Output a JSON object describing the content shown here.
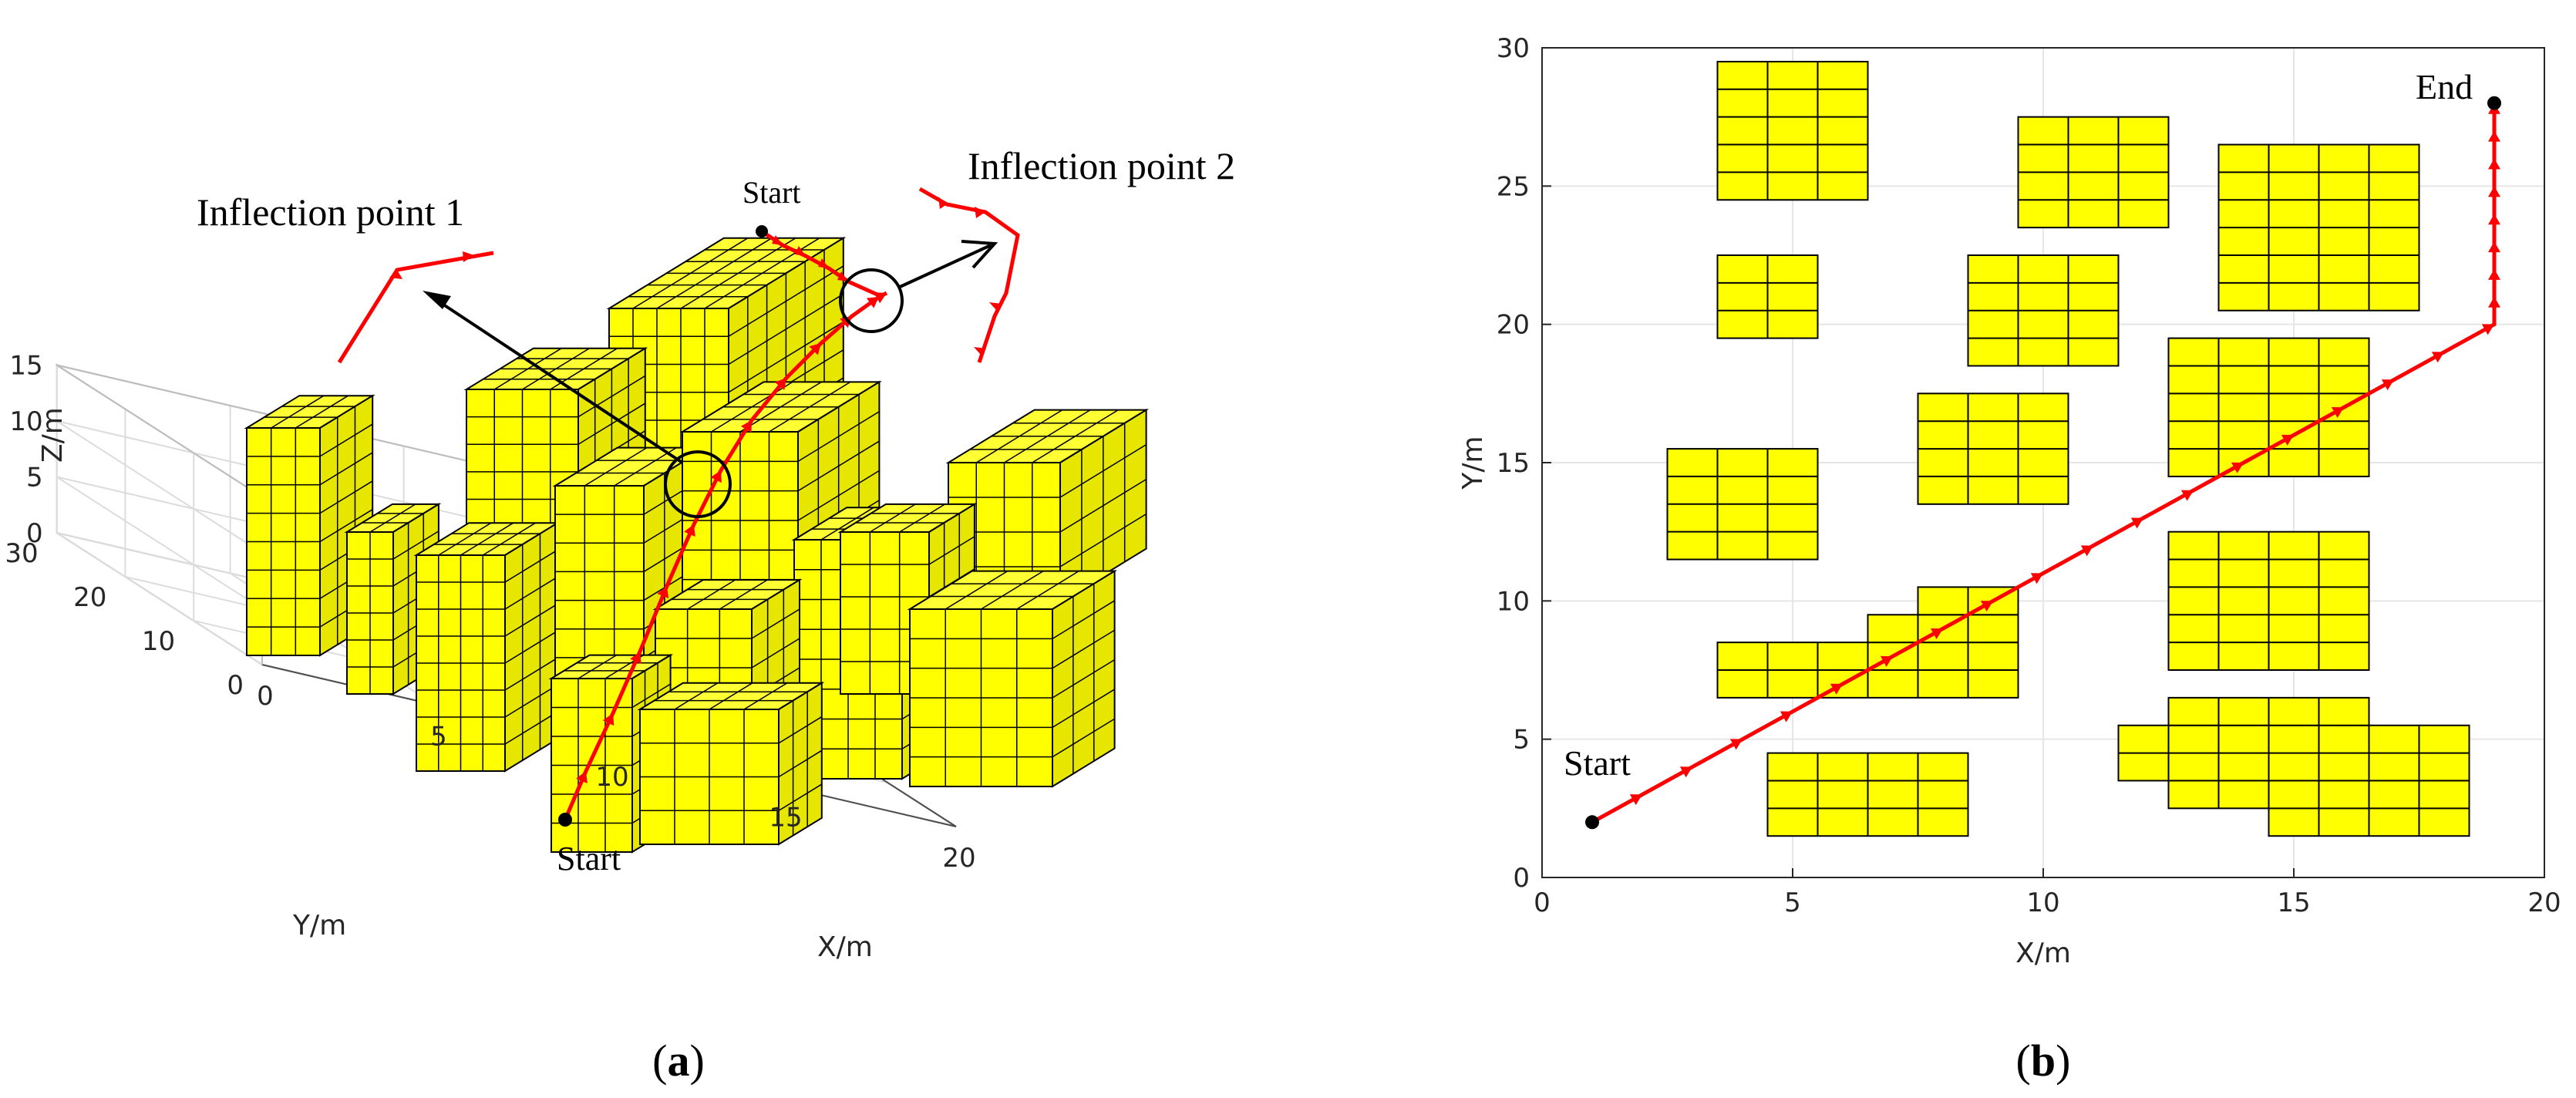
{
  "panels": {
    "a": {
      "caption_open": "(",
      "caption_letter": "a",
      "caption_close": ")"
    },
    "b": {
      "caption_open": "(",
      "caption_letter": "b",
      "caption_close": ")"
    }
  },
  "chart_data": [
    {
      "type": "scatter",
      "variant": "3d",
      "title": "",
      "xlabel": "X/m",
      "ylabel": "Y/m",
      "zlabel": "Z/m",
      "xlim": [
        0,
        20
      ],
      "ylim": [
        0,
        30
      ],
      "zlim": [
        0,
        15
      ],
      "xticks": [
        "0",
        "5",
        "10",
        "15",
        "20"
      ],
      "yticks": [
        "0",
        "10",
        "20",
        "30"
      ],
      "zticks": [
        "0",
        "5",
        "10",
        "15"
      ],
      "grid": true,
      "obstacle_color": "#ffff00",
      "path_color": "#ff0000",
      "annotations": {
        "start_bottom": "Start",
        "start_top": "Start",
        "inflection_1": "Inflection point 1",
        "inflection_2": "Inflection point 2"
      },
      "series": [
        {
          "values_3d": [
            [
              1,
              2,
              0
            ],
            [
              2.4,
              3,
              1.2
            ],
            [
              3.8,
              4,
              2.4
            ],
            [
              5.2,
              5,
              3.6
            ],
            [
              6.6,
              6,
              4.8
            ],
            [
              8,
              7,
              6
            ],
            [
              9.6,
              8.4,
              6.9
            ],
            [
              11.2,
              9.8,
              7.8
            ],
            [
              12.8,
              11.2,
              8.7
            ],
            [
              14.4,
              12.6,
              9.6
            ],
            [
              16,
              14,
              10.5
            ],
            [
              17.5,
              15.5,
              11.2
            ],
            [
              19,
              17,
              12
            ]
          ]
        }
      ]
    },
    {
      "type": "line",
      "title": "",
      "xlabel": "X/m",
      "ylabel": "Y/m",
      "xlim": [
        0,
        20
      ],
      "ylim": [
        0,
        30
      ],
      "xticks": [
        "0",
        "5",
        "10",
        "15",
        "20"
      ],
      "yticks": [
        "0",
        "5",
        "10",
        "15",
        "20",
        "25",
        "30"
      ],
      "grid": true,
      "obstacle_color": "#ffff00",
      "path_color": "#ff0000",
      "annotations": {
        "start": "Start",
        "end": "End"
      },
      "series": [
        {
          "x": [
            1,
            2,
            3,
            4,
            5,
            6,
            7,
            8,
            9,
            10,
            11,
            12,
            13,
            14,
            15,
            16,
            17,
            18,
            19,
            19,
            19,
            19,
            19,
            19,
            19,
            19,
            19
          ],
          "y": [
            2,
            3,
            4,
            5,
            6,
            7,
            8,
            9,
            10,
            11,
            12,
            13,
            14,
            15,
            16,
            17,
            18,
            19,
            20,
            21,
            22,
            23,
            24,
            25,
            26,
            27,
            28
          ]
        }
      ],
      "obstacles": [
        {
          "x": [
            3.5,
            6.5
          ],
          "y": [
            24.5,
            29.5
          ]
        },
        {
          "x": [
            9.5,
            12.5
          ],
          "y": [
            23.5,
            27.5
          ]
        },
        {
          "x": [
            13.5,
            17.5
          ],
          "y": [
            20.5,
            26.5
          ]
        },
        {
          "x": [
            3.5,
            5.5
          ],
          "y": [
            19.5,
            22.5
          ]
        },
        {
          "x": [
            8.5,
            11.5
          ],
          "y": [
            18.5,
            22.5
          ]
        },
        {
          "x": [
            12.5,
            16.5
          ],
          "y": [
            14.5,
            19.5
          ]
        },
        {
          "x": [
            7.5,
            10.5
          ],
          "y": [
            13.5,
            17.5
          ]
        },
        {
          "x": [
            2.5,
            5.5
          ],
          "y": [
            11.5,
            15.5
          ]
        },
        {
          "x": [
            12.5,
            16.5
          ],
          "y": [
            7.5,
            12.5
          ]
        },
        {
          "x": [
            3.5,
            9.5
          ],
          "y": [
            6.5,
            8.5
          ]
        },
        {
          "x": [
            6.5,
            9.5
          ],
          "y": [
            8.5,
            9.5
          ]
        },
        {
          "x": [
            7.5,
            9.5
          ],
          "y": [
            9.5,
            10.5
          ]
        },
        {
          "x": [
            11.5,
            18.5
          ],
          "y": [
            3.5,
            5.5
          ]
        },
        {
          "x": [
            12.5,
            16.5
          ],
          "y": [
            5.5,
            6.5
          ]
        },
        {
          "x": [
            12.5,
            14.5
          ],
          "y": [
            2.5,
            3.5
          ]
        },
        {
          "x": [
            14.5,
            18.5
          ],
          "y": [
            1.5,
            3.5
          ]
        },
        {
          "x": [
            4.5,
            8.5
          ],
          "y": [
            1.5,
            4.5
          ]
        }
      ]
    }
  ]
}
